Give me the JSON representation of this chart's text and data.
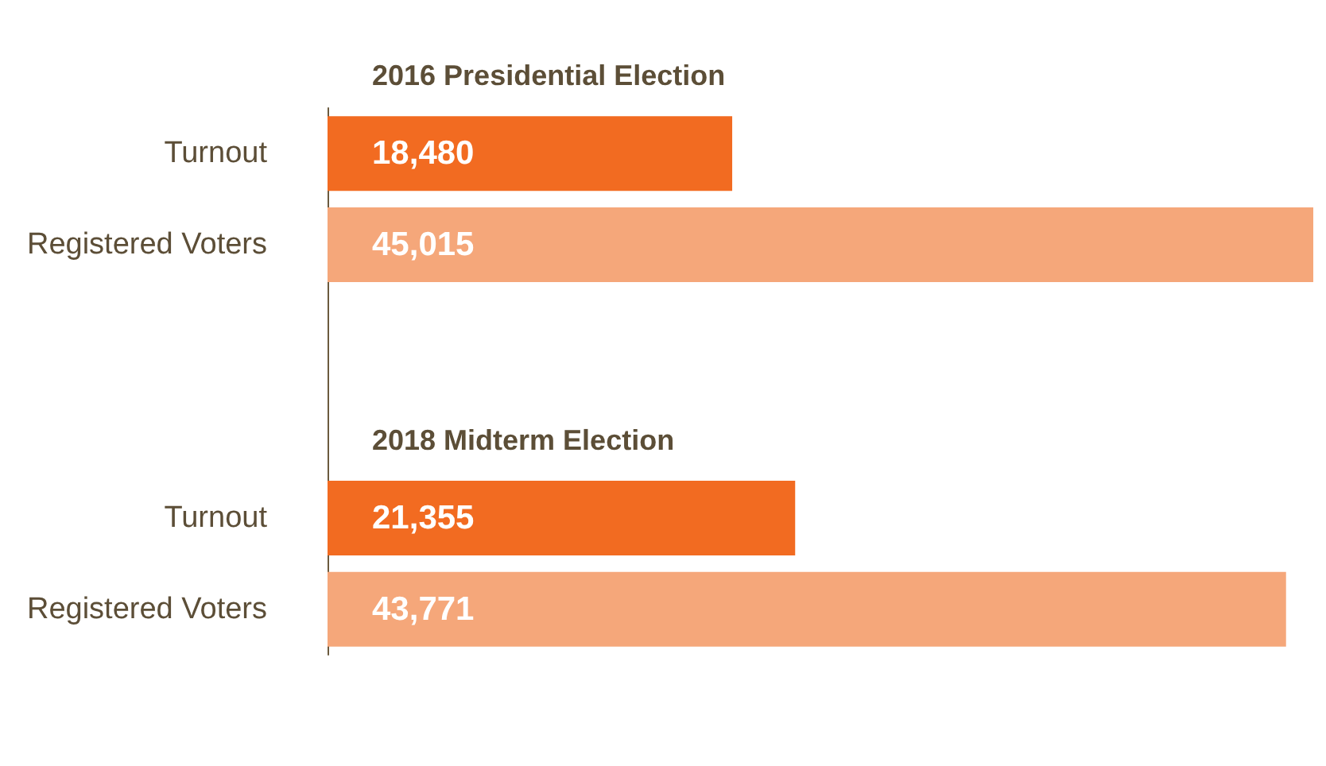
{
  "chart_data": {
    "type": "bar",
    "orientation": "horizontal",
    "categories": [
      "Turnout",
      "Registered Voters",
      null,
      null,
      "Turnout",
      "Registered Voters"
    ],
    "values": [
      18480,
      45015,
      null,
      null,
      21355,
      43771
    ],
    "colors": [
      "#f26b21",
      "#f5a77a",
      null,
      null,
      "#f26b21",
      "#f5a77a"
    ],
    "value_labels": [
      "18,480",
      "45,015",
      null,
      null,
      "21,355",
      "43,771"
    ],
    "tick_labels": "y",
    "annotations": [
      "2016 Presidential Election",
      "2018 Midterm Election"
    ]
  }
}
